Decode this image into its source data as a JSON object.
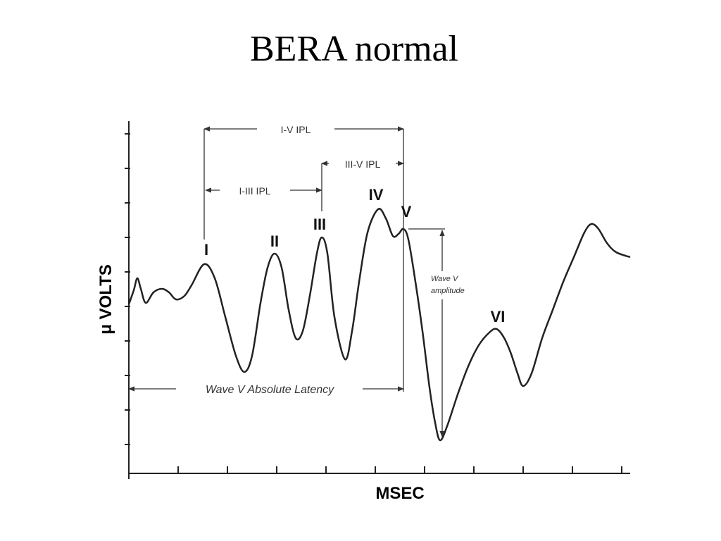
{
  "header": {
    "title": "BERA normal"
  },
  "axes": {
    "y_label": "μ VOLTS",
    "x_label": "MSEC"
  },
  "peaks": [
    "I",
    "II",
    "III",
    "IV",
    "V",
    "VI"
  ],
  "intervals": {
    "i_v": "I-V IPL",
    "iii_v": "III-V IPL",
    "i_iii": "I-III IPL",
    "absolute": "Wave V Absolute Latency",
    "amplitude_1": "Wave V",
    "amplitude_2": "amplitude"
  }
}
